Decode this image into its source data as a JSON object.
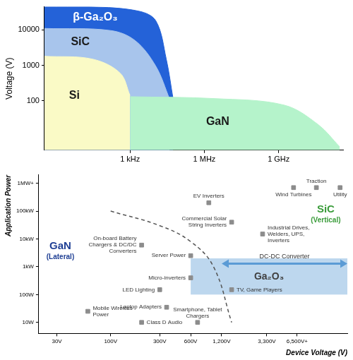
{
  "chart_data": [
    {
      "type": "area",
      "ylabel": "Voltage (V)",
      "log": true,
      "grid": false,
      "xlim": [
        0.35,
        400000000000
      ],
      "ylim": [
        4,
        45000
      ],
      "xticks": [
        {
          "value": 1000,
          "label": "1 kHz"
        },
        {
          "value": 1000000,
          "label": "1 MHz"
        },
        {
          "value": 1000000000,
          "label": "1 GHz"
        }
      ],
      "yticks": [
        100,
        1000,
        10000
      ],
      "series": [
        {
          "name": "β-Ga₂O₃",
          "color": "#2462d8",
          "x": [
            0.35,
            24,
            2200,
            11000,
            29000,
            55000
          ],
          "values": [
            45000,
            45000,
            34000,
            18000,
            1500,
            110
          ]
        },
        {
          "name": "SiC",
          "color": "#a8c5ec",
          "x": [
            0.35,
            165,
            1600,
            11000,
            40000
          ],
          "values": [
            11000,
            9600,
            5000,
            940,
            110
          ]
        },
        {
          "name": "Si",
          "color": "#fafac6",
          "x": [
            0.35,
            30,
            400,
            1000
          ],
          "values": [
            1800,
            1500,
            600,
            140
          ]
        },
        {
          "name": "GaN",
          "color": "#b5f3cb",
          "x": [
            1000,
            2600000,
            1700000000,
            40000000000,
            290000000000
          ],
          "values": [
            130,
            115,
            75,
            21,
            5
          ]
        }
      ]
    },
    {
      "type": "scatter",
      "xlabel": "Device Voltage (V)",
      "ylabel": "Application Power",
      "log": true,
      "grid": false,
      "xlim": [
        20,
        20000
      ],
      "ylim": [
        4,
        2000000
      ],
      "xticks": [
        {
          "value": 30,
          "label": "30V"
        },
        {
          "value": 100,
          "label": "100V"
        },
        {
          "value": 300,
          "label": "300V"
        },
        {
          "value": 600,
          "label": "600V"
        },
        {
          "value": 1200,
          "label": "1,200V"
        },
        {
          "value": 3300,
          "label": "3,300V"
        },
        {
          "value": 6500,
          "label": "6,500V+"
        }
      ],
      "yticks": [
        {
          "value": 10,
          "label": "10W"
        },
        {
          "value": 100,
          "label": "100W"
        },
        {
          "value": 1000,
          "label": "1kW"
        },
        {
          "value": 10000,
          "label": "10kW"
        },
        {
          "value": 100000,
          "label": "100kW"
        },
        {
          "value": 1000000,
          "label": "1MW+"
        }
      ],
      "regions": [
        {
          "name": "GaN",
          "label": "(Lateral)",
          "color": "#1f3f94"
        },
        {
          "name": "SiC",
          "label": "(Vertical)",
          "color": "#3a9c3a"
        }
      ],
      "boundary": {
        "x": [
          100,
          300,
          600,
          1000,
          1500
        ],
        "values": [
          100000,
          30000,
          8000,
          1000,
          10
        ],
        "line_style": "dashed",
        "color": "#555555"
      },
      "box": {
        "name": "Ga₂O₃",
        "x": [
          600,
          20000
        ],
        "y": [
          100,
          2000
        ],
        "color": "#bdd7ee"
      },
      "arrow": {
        "label": "DC-DC Converter",
        "x": [
          1200,
          20000
        ],
        "y": 1300,
        "color": "#5b9bd5"
      },
      "applications": {
        "color": "#8c8c8c",
        "marker": "square",
        "points": [
          {
            "label": "Mobile Wireless Power",
            "x": 60,
            "y": 25
          },
          {
            "label": "Class D Audio",
            "x": 200,
            "y": 10
          },
          {
            "label": "Laptop Adapters",
            "x": 350,
            "y": 35
          },
          {
            "label": "Smartphone, Tablet Chargers",
            "x": 700,
            "y": 10
          },
          {
            "label": "LED Lighting",
            "x": 300,
            "y": 150
          },
          {
            "label": "Micro-inverters",
            "x": 600,
            "y": 400
          },
          {
            "label": "Server Power",
            "x": 600,
            "y": 2500
          },
          {
            "label": "On-board Battery Chargers & DC/DC Converters",
            "x": 200,
            "y": 6000
          },
          {
            "label": "TV, Game Players",
            "x": 1500,
            "y": 150
          },
          {
            "label": "Commercial Solar String Inverters",
            "x": 1500,
            "y": 40000
          },
          {
            "label": "Industrial Drives, Welders, UPS, Inverters",
            "x": 3000,
            "y": 15000
          },
          {
            "label": "EV Inverters",
            "x": 900,
            "y": 200000
          },
          {
            "label": "Wind Turbines",
            "x": 6000,
            "y": 700000
          },
          {
            "label": "Traction",
            "x": 10000,
            "y": 700000
          },
          {
            "label": "Utility",
            "x": 17000,
            "y": 700000
          }
        ]
      }
    }
  ]
}
